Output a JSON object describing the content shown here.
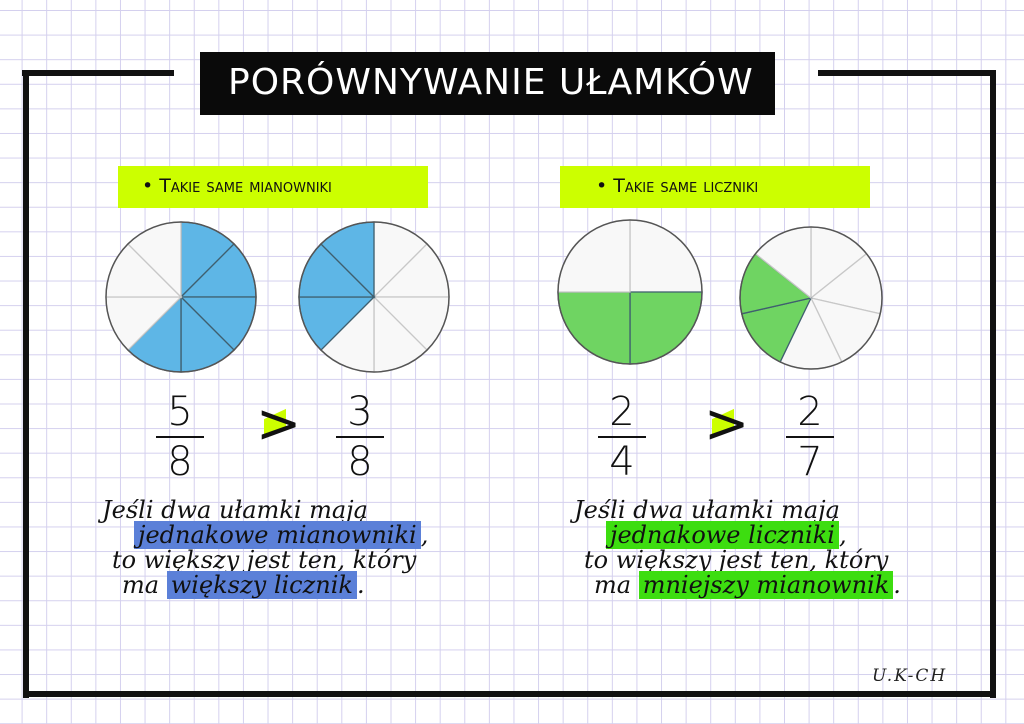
{
  "title": "PORÓWNYWANIE UŁAMKÓW",
  "colors": {
    "blue": "#5eb6e6",
    "green": "#6fd462",
    "highlight_yellow": "#ccff00",
    "highlight_blue": "#5b80d8",
    "highlight_green": "#3ddd10"
  },
  "left": {
    "heading": "• Takie same mianowniki",
    "pies": [
      {
        "parts": 8,
        "shaded": 5
      },
      {
        "parts": 8,
        "shaded": 3
      }
    ],
    "fraction_a": {
      "num": "5",
      "den": "8"
    },
    "comparator": ">",
    "fraction_b": {
      "num": "3",
      "den": "8"
    },
    "rule": {
      "line1": "Jeśli dwa ułamki mają",
      "line2_hl": "jednakowe mianowniki",
      "line2_end": ",",
      "line3": "to większy jest ten, który",
      "line4_start": "ma",
      "line4_hl": "większy licznik",
      "line4_end": "."
    }
  },
  "right": {
    "heading": "• Takie same liczniki",
    "pies": [
      {
        "parts": 4,
        "shaded": 2
      },
      {
        "parts": 7,
        "shaded": 2
      }
    ],
    "fraction_a": {
      "num": "2",
      "den": "4"
    },
    "comparator": ">",
    "fraction_b": {
      "num": "2",
      "den": "7"
    },
    "rule": {
      "line1": "Jeśli dwa ułamki mają",
      "line2_hl": "jednakowe liczniki",
      "line2_end": ",",
      "line3": "to większy jest ten, który",
      "line4_start": "ma",
      "line4_hl": "mniejszy mianownik",
      "line4_end": "."
    }
  },
  "signature": "U.K-CH"
}
